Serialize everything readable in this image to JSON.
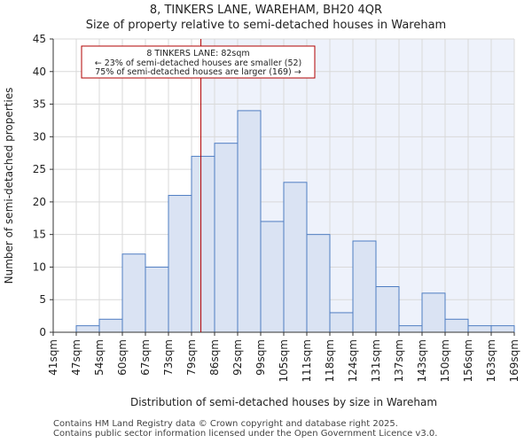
{
  "chart_data": {
    "type": "bar",
    "title": "8, TINKERS LANE, WAREHAM, BH20 4QR",
    "subtitle": "Size of property relative to semi-detached houses in Wareham",
    "xlabel": "Distribution of semi-detached houses by size in Wareham",
    "ylabel": "Number of semi-detached properties",
    "x_tick_labels": [
      "41sqm",
      "47sqm",
      "54sqm",
      "60sqm",
      "67sqm",
      "73sqm",
      "79sqm",
      "86sqm",
      "92sqm",
      "99sqm",
      "105sqm",
      "111sqm",
      "118sqm",
      "124sqm",
      "131sqm",
      "137sqm",
      "143sqm",
      "150sqm",
      "156sqm",
      "163sqm",
      "169sqm"
    ],
    "values": [
      0,
      1,
      2,
      12,
      10,
      21,
      27,
      29,
      34,
      17,
      23,
      15,
      3,
      14,
      7,
      1,
      6,
      2,
      1,
      1
    ],
    "ylim": [
      0,
      45
    ],
    "y_ticks": [
      0,
      5,
      10,
      15,
      20,
      25,
      30,
      35,
      40,
      45
    ],
    "marker_value": 82,
    "bin_start": 41,
    "bin_end": 169,
    "annotation": {
      "line1": "8 TINKERS LANE: 82sqm",
      "line2": "← 23% of semi-detached houses are smaller (52)",
      "line3": "75% of semi-detached houses are larger (169) →"
    },
    "colors": {
      "bar_fill": "#dae3f3",
      "bar_stroke": "#4f7dc2",
      "marker": "#b00000",
      "highlight_bg": "#eef2fb"
    }
  },
  "footer": {
    "line1": "Contains HM Land Registry data © Crown copyright and database right 2025.",
    "line2": "Contains public sector information licensed under the Open Government Licence v3.0."
  }
}
